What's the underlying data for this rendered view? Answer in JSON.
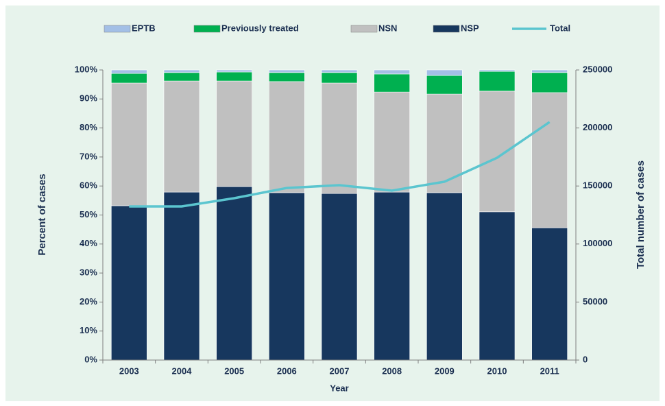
{
  "chart_data": {
    "type": "bar",
    "stacked": true,
    "xlabel": "Year",
    "ylabel": "Percent of cases",
    "y2label": "Total number of cases",
    "categories": [
      "2003",
      "2004",
      "2005",
      "2006",
      "2007",
      "2008",
      "2009",
      "2010",
      "2011"
    ],
    "series": [
      {
        "name": "EPTB",
        "color": "#a3bfe6",
        "values": [
          1.2,
          0.9,
          0.7,
          0.9,
          0.9,
          1.4,
          1.9,
          0.5,
          0.9
        ]
      },
      {
        "name": "Previously treated",
        "color": "#00b050",
        "values": [
          3.3,
          2.9,
          3.1,
          3.1,
          3.6,
          6.2,
          6.4,
          6.8,
          6.9
        ]
      },
      {
        "name": "NSN",
        "color": "#c0c0c0",
        "values": [
          42.3,
          38.3,
          36.4,
          38.3,
          38.1,
          34.5,
          34.0,
          41.6,
          46.6
        ]
      },
      {
        "name": "NSP",
        "color": "#17375e",
        "values": [
          53.2,
          57.9,
          59.8,
          57.7,
          57.4,
          57.9,
          57.7,
          51.1,
          45.6
        ]
      },
      {
        "name": "Total",
        "type": "line",
        "axis": "y2",
        "color": "#5bc5cf",
        "values": [
          132400,
          132400,
          139500,
          148300,
          150700,
          146000,
          153700,
          174300,
          205100
        ]
      }
    ],
    "ylim": [
      0,
      100
    ],
    "yticks": [
      {
        "value": 0,
        "label": "0%"
      },
      {
        "value": 10,
        "label": "10%"
      },
      {
        "value": 20,
        "label": "20%"
      },
      {
        "value": 30,
        "label": "30%"
      },
      {
        "value": 40,
        "label": "40%"
      },
      {
        "value": 50,
        "label": "50%"
      },
      {
        "value": 60,
        "label": "60%"
      },
      {
        "value": 70,
        "label": "70%"
      },
      {
        "value": 80,
        "label": "80%"
      },
      {
        "value": 90,
        "label": "90%"
      },
      {
        "value": 100,
        "label": "100%"
      }
    ],
    "y2lim": [
      0,
      250000
    ],
    "y2ticks": [
      0,
      50000,
      100000,
      150000,
      200000,
      250000
    ],
    "legend": "top"
  }
}
